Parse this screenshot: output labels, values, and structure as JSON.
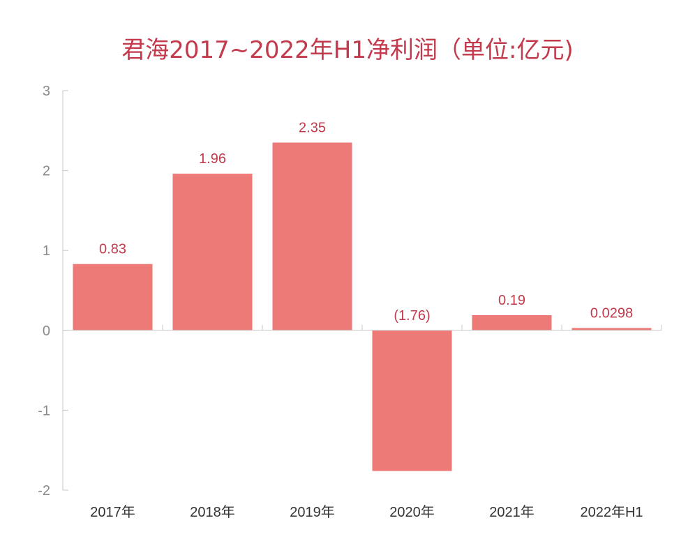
{
  "chart_data": {
    "type": "bar",
    "title": "君海2017~2022年H1净利润（单位:亿元)",
    "xlabel": "",
    "ylabel": "",
    "categories": [
      "2017年",
      "2018年",
      "2019年",
      "2020年",
      "2021年",
      "2022年H1"
    ],
    "values": [
      0.83,
      1.96,
      2.35,
      -1.76,
      0.19,
      0.0298
    ],
    "data_labels": [
      "0.83",
      "1.96",
      "2.35",
      "(1.76)",
      "0.19",
      "0.0298"
    ],
    "ylim": [
      -2,
      3
    ],
    "yticks": [
      3,
      2,
      1,
      0,
      -1,
      -2
    ],
    "grid": false,
    "colors": {
      "title": "#c23a4b",
      "bar": "#ee7a77",
      "data_label": "#c23a4b",
      "axis": "#c9c9c9",
      "tick_label": "#8a8a8a",
      "category_label": "#333333"
    }
  }
}
